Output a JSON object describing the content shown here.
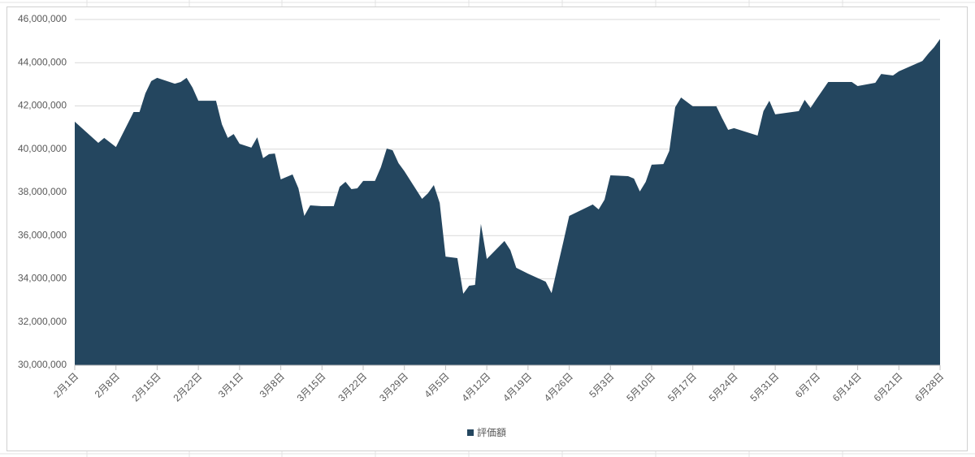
{
  "chart_data": {
    "type": "area",
    "x": [
      "2月1日",
      "2月5日",
      "2月6日",
      "2月8日",
      "2月11日",
      "2月12日",
      "2月13日",
      "2月14日",
      "2月15日",
      "2月18日",
      "2月19日",
      "2月20日",
      "2月21日",
      "2月22日",
      "2月25日",
      "2月26日",
      "2月27日",
      "2月28日",
      "3月1日",
      "3月3日",
      "3月4日",
      "3月5日",
      "3月6日",
      "3月7日",
      "3月8日",
      "3月10日",
      "3月11日",
      "3月12日",
      "3月13日",
      "3月15日",
      "3月17日",
      "3月18日",
      "3月19日",
      "3月20日",
      "3月21日",
      "3月22日",
      "3月24日",
      "3月25日",
      "3月26日",
      "3月27日",
      "3月28日",
      "3月29日",
      "4月1日",
      "4月2日",
      "4月3日",
      "4月4日",
      "4月5日",
      "4月7日",
      "4月8日",
      "4月9日",
      "4月10日",
      "4月11日",
      "4月12日",
      "4月15日",
      "4月16日",
      "4月17日",
      "4月19日",
      "4月22日",
      "4月23日",
      "4月24日",
      "4月25日",
      "4月26日",
      "4月30日",
      "5月1日",
      "5月2日",
      "5月3日",
      "5月6日",
      "5月7日",
      "5月8日",
      "5月9日",
      "5月10日",
      "5月12日",
      "5月13日",
      "5月14日",
      "5月15日",
      "5月17日",
      "5月21日",
      "5月22日",
      "5月23日",
      "5月24日",
      "5月28日",
      "5月29日",
      "5月30日",
      "5月31日",
      "6月4日",
      "6月5日",
      "6月6日",
      "6月7日",
      "6月9日",
      "6月13日",
      "6月14日",
      "6月17日",
      "6月18日",
      "6月20日",
      "6月21日",
      "6月25日",
      "6月26日",
      "6月27日",
      "6月28日"
    ],
    "series": [
      {
        "name": "評価額",
        "color": "#24465f",
        "values": [
          41270000,
          40290000,
          40520000,
          40100000,
          41720000,
          41720000,
          42580000,
          43150000,
          43300000,
          43030000,
          43110000,
          43300000,
          42850000,
          42240000,
          42240000,
          41150000,
          40520000,
          40700000,
          40250000,
          40070000,
          40550000,
          39580000,
          39770000,
          39800000,
          38600000,
          38830000,
          38190000,
          36910000,
          37400000,
          37360000,
          37360000,
          38260000,
          38490000,
          38150000,
          38190000,
          38530000,
          38530000,
          39160000,
          40030000,
          39950000,
          39350000,
          38980000,
          37700000,
          37960000,
          38340000,
          37510000,
          35030000,
          34960000,
          33310000,
          33680000,
          33720000,
          36540000,
          34920000,
          35750000,
          35330000,
          34510000,
          34240000,
          33870000,
          33340000,
          34540000,
          35710000,
          36910000,
          37440000,
          37210000,
          37660000,
          38790000,
          38750000,
          38640000,
          38040000,
          38490000,
          39280000,
          39310000,
          39920000,
          41940000,
          42390000,
          41980000,
          41980000,
          41420000,
          40890000,
          40970000,
          40630000,
          41760000,
          42240000,
          41610000,
          41760000,
          42280000,
          41910000,
          42320000,
          43110000,
          43110000,
          42920000,
          43070000,
          43480000,
          43410000,
          43600000,
          44080000,
          44420000,
          44720000,
          45100000
        ]
      }
    ],
    "xlim": [
      "2月1日",
      "6月28日"
    ],
    "xticks": [
      "2月1日",
      "2月8日",
      "2月15日",
      "2月22日",
      "3月1日",
      "3月8日",
      "3月15日",
      "3月22日",
      "3月29日",
      "4月5日",
      "4月12日",
      "4月19日",
      "4月26日",
      "5月3日",
      "5月10日",
      "5月17日",
      "5月24日",
      "5月31日",
      "6月7日",
      "6月14日",
      "6月21日",
      "6月28日"
    ],
    "ylim": [
      30000000,
      46000000
    ],
    "yticks": [
      {
        "value": 30000000,
        "label": "30,000,000"
      },
      {
        "value": 32000000,
        "label": "32,000,000"
      },
      {
        "value": 34000000,
        "label": "34,000,000"
      },
      {
        "value": 36000000,
        "label": "36,000,000"
      },
      {
        "value": 38000000,
        "label": "38,000,000"
      },
      {
        "value": 40000000,
        "label": "40,000,000"
      },
      {
        "value": 42000000,
        "label": "42,000,000"
      },
      {
        "value": 44000000,
        "label": "44,000,000"
      },
      {
        "value": 46000000,
        "label": "46,000,000"
      }
    ],
    "grid": true,
    "legend": "bottom"
  }
}
